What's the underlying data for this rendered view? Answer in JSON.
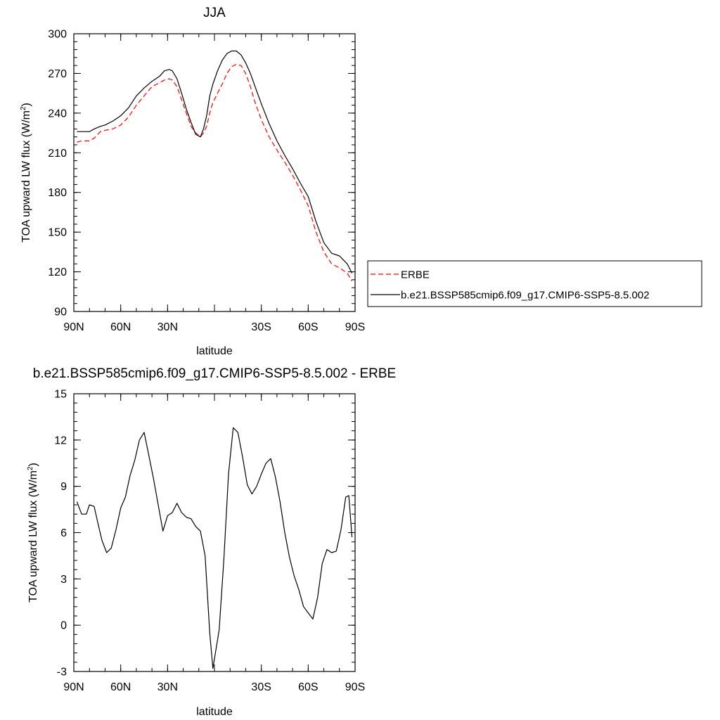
{
  "chart_data": [
    {
      "type": "line",
      "title": "JJA",
      "xlabel": "latitude",
      "ylabel": "TOA upward LW flux (W/m",
      "ylabel_sup": "2",
      "ylabel_close": ")",
      "xlim": [
        90,
        -90
      ],
      "ylim": [
        90,
        300
      ],
      "xticks": [
        90,
        60,
        30,
        0,
        -30,
        -60,
        -90
      ],
      "xtick_labels": [
        "90N",
        "60N",
        "30N",
        "",
        "30S",
        "60S",
        "90S"
      ],
      "yticks": [
        90,
        120,
        150,
        180,
        210,
        240,
        270,
        300
      ],
      "ytick_labels": [
        "90",
        "120",
        "150",
        "180",
        "210",
        "240",
        "270",
        "300"
      ],
      "legend_position": "right",
      "series": [
        {
          "name": "ERBE",
          "style": "dashed",
          "color": "#ff0000",
          "x": [
            88,
            85,
            80,
            77,
            73,
            70,
            65,
            60,
            55,
            50,
            45,
            40,
            35,
            32,
            29,
            27,
            24,
            21,
            18,
            15,
            12,
            9,
            7,
            5,
            3,
            1,
            -2,
            -5,
            -8,
            -11,
            -14,
            -17,
            -20,
            -23,
            -26,
            -30,
            -35,
            -40,
            -45,
            -50,
            -55,
            -60,
            -65,
            -70,
            -75,
            -80,
            -85,
            -88
          ],
          "y": [
            218,
            219,
            219,
            221,
            226,
            227,
            228,
            231,
            237,
            246,
            253,
            260,
            263,
            265,
            266,
            265,
            260,
            250,
            240,
            230,
            225,
            222,
            225,
            230,
            240,
            248,
            255,
            262,
            270,
            275,
            277,
            276,
            270,
            260,
            248,
            235,
            222,
            212,
            203,
            193,
            182,
            170,
            150,
            135,
            126,
            123,
            119,
            113
          ]
        },
        {
          "name": "b.e21.BSSP585cmip6.f09_g17.CMIP6-SSP5-8.5.002",
          "style": "solid",
          "color": "#000000",
          "x": [
            88,
            85,
            80,
            77,
            73,
            70,
            65,
            60,
            55,
            50,
            45,
            40,
            35,
            32,
            29,
            27,
            24,
            21,
            18,
            15,
            12,
            9,
            7,
            5,
            3,
            1,
            -2,
            -5,
            -8,
            -11,
            -14,
            -17,
            -20,
            -23,
            -26,
            -30,
            -35,
            -40,
            -45,
            -50,
            -55,
            -60,
            -65,
            -70,
            -75,
            -80,
            -85,
            -88
          ],
          "y": [
            226,
            226,
            226,
            228,
            230,
            231,
            234,
            238,
            244,
            253,
            259,
            264,
            268,
            272,
            273,
            272,
            266,
            255,
            243,
            233,
            224,
            222,
            228,
            238,
            253,
            262,
            272,
            280,
            285,
            287,
            287,
            284,
            278,
            270,
            260,
            247,
            232,
            219,
            208,
            198,
            187,
            177,
            158,
            142,
            134,
            132,
            126,
            119
          ]
        }
      ]
    },
    {
      "type": "line",
      "title": "b.e21.BSSP585cmip6.f09_g17.CMIP6-SSP5-8.5.002 - ERBE",
      "xlabel": "latitude",
      "ylabel": "TOA upward LW flux (W/m",
      "ylabel_sup": "2",
      "ylabel_close": ")",
      "xlim": [
        90,
        -90
      ],
      "ylim": [
        -3,
        15
      ],
      "xticks": [
        90,
        60,
        30,
        0,
        -30,
        -60,
        -90
      ],
      "xtick_labels": [
        "90N",
        "60N",
        "30N",
        "",
        "30S",
        "60S",
        "90S"
      ],
      "yticks": [
        -3,
        0,
        3,
        6,
        9,
        12,
        15
      ],
      "ytick_labels": [
        "-3",
        "0",
        "3",
        "6",
        "9",
        "12",
        "15"
      ],
      "series": [
        {
          "name": "",
          "style": "solid",
          "color": "#000000",
          "x": [
            88,
            85,
            82,
            80,
            77,
            75,
            72,
            69,
            66,
            63,
            60,
            57,
            54,
            51,
            48,
            45,
            42,
            39,
            36,
            33,
            30,
            27,
            24,
            21,
            18,
            15,
            12,
            9,
            6,
            3,
            1,
            -3,
            -6,
            -9,
            -12,
            -15,
            -18,
            -21,
            -24,
            -27,
            -30,
            -33,
            -36,
            -39,
            -42,
            -45,
            -48,
            -51,
            -54,
            -57,
            -60,
            -63,
            -66,
            -69,
            -72,
            -75,
            -78,
            -81,
            -84,
            -86,
            -88
          ],
          "y": [
            8.0,
            7.2,
            7.2,
            7.8,
            7.7,
            6.8,
            5.5,
            4.7,
            5.0,
            6.2,
            7.6,
            8.3,
            9.7,
            10.7,
            12.0,
            12.5,
            11.0,
            9.5,
            7.8,
            6.1,
            7.1,
            7.3,
            7.9,
            7.3,
            7.0,
            6.9,
            6.4,
            6.1,
            4.5,
            -0.5,
            -2.8,
            -0.3,
            4.2,
            9.8,
            12.8,
            12.5,
            10.9,
            9.1,
            8.5,
            9.0,
            9.8,
            10.5,
            10.8,
            9.6,
            8.0,
            6.0,
            4.4,
            3.2,
            2.3,
            1.2,
            0.8,
            0.4,
            1.8,
            4.0,
            4.9,
            4.7,
            4.8,
            6.2,
            8.3,
            8.4,
            5.7
          ]
        }
      ]
    }
  ]
}
